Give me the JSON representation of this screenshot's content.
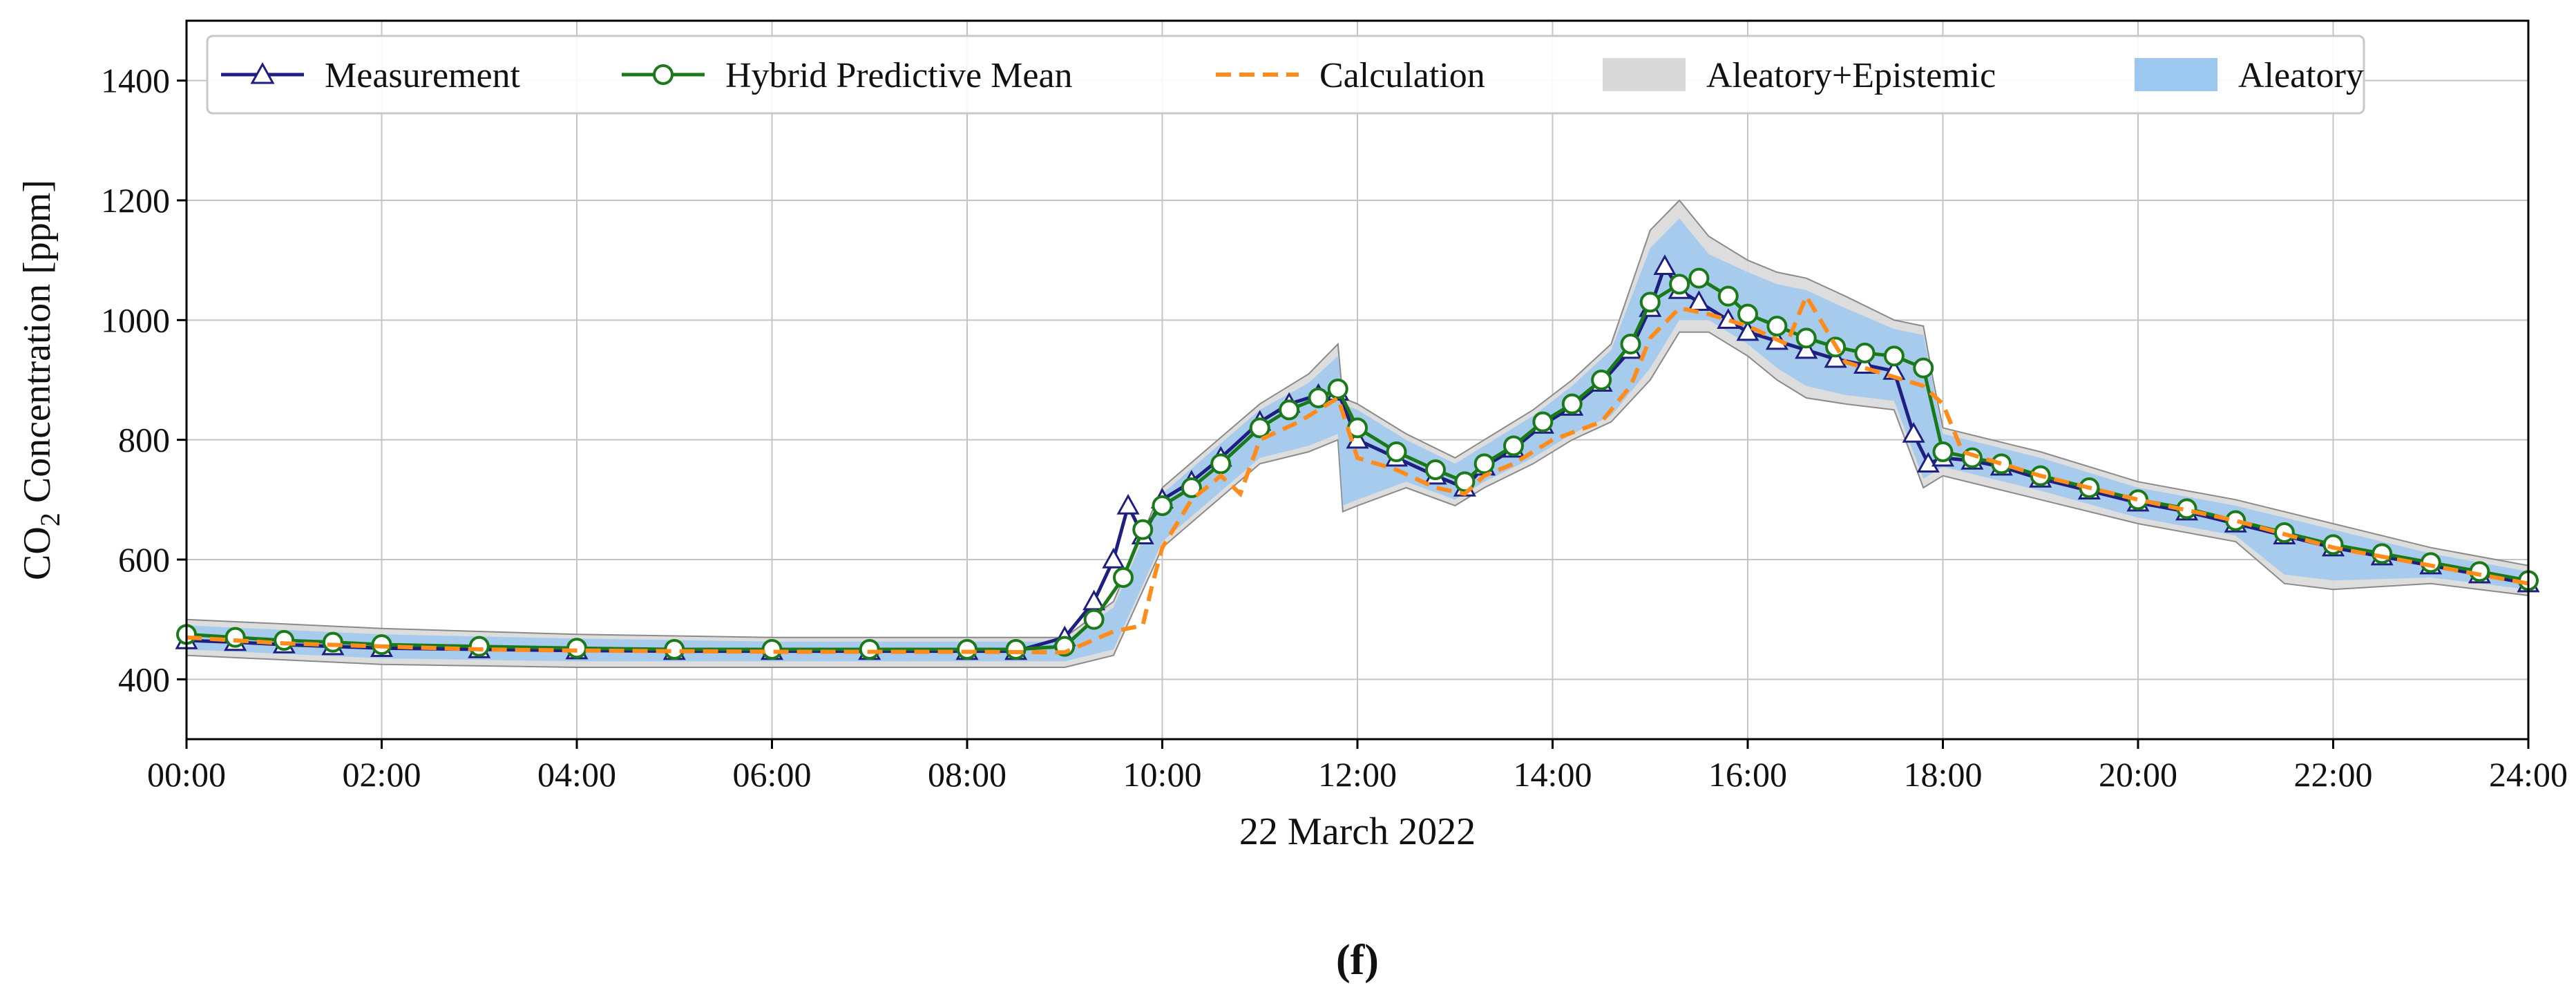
{
  "chart_data": {
    "type": "line",
    "panel_label": "(f)",
    "xlabel": "22 March 2022",
    "ylabel_parts": {
      "pre": "CO",
      "sub": "2",
      "post": " Concentration [ppm]"
    },
    "x_unit": "hours",
    "xlim": [
      0,
      24
    ],
    "ylim": [
      300,
      1500
    ],
    "x_ticks": [
      {
        "value": 0,
        "label": "00:00"
      },
      {
        "value": 2,
        "label": "02:00"
      },
      {
        "value": 4,
        "label": "04:00"
      },
      {
        "value": 6,
        "label": "06:00"
      },
      {
        "value": 8,
        "label": "08:00"
      },
      {
        "value": 10,
        "label": "10:00"
      },
      {
        "value": 12,
        "label": "12:00"
      },
      {
        "value": 14,
        "label": "14:00"
      },
      {
        "value": 16,
        "label": "16:00"
      },
      {
        "value": 18,
        "label": "18:00"
      },
      {
        "value": 20,
        "label": "20:00"
      },
      {
        "value": 22,
        "label": "22:00"
      },
      {
        "value": 24,
        "label": "24:00"
      }
    ],
    "y_ticks": [
      {
        "value": 400,
        "label": "400"
      },
      {
        "value": 600,
        "label": "600"
      },
      {
        "value": 800,
        "label": "800"
      },
      {
        "value": 1000,
        "label": "1000"
      },
      {
        "value": 1200,
        "label": "1200"
      },
      {
        "value": 1400,
        "label": "1400"
      }
    ],
    "grid": true,
    "legend_position": "top",
    "legend": [
      {
        "key": "measurement",
        "label": "Measurement",
        "kind": "line-triangle",
        "color": "#1f1f80"
      },
      {
        "key": "hybrid",
        "label": "Hybrid Predictive Mean",
        "kind": "line-circle",
        "color": "#1a7a1a"
      },
      {
        "key": "calculation",
        "label": "Calculation",
        "kind": "dashed",
        "color": "#ff8c1a"
      },
      {
        "key": "aleatory_epistemic",
        "label": "Aleatory+Epistemic",
        "kind": "band",
        "color": "#d9d9d9"
      },
      {
        "key": "aleatory",
        "label": "Aleatory",
        "kind": "band",
        "color": "#9cc8f0"
      }
    ],
    "series": [
      {
        "name": "Hybrid Predictive Mean",
        "x": [
          0,
          0.5,
          1,
          1.5,
          2,
          3,
          4,
          5,
          6,
          7,
          8,
          8.5,
          9,
          9.3,
          9.6,
          9.8,
          10,
          10.3,
          10.6,
          11,
          11.3,
          11.6,
          11.8,
          12,
          12.4,
          12.8,
          13.1,
          13.3,
          13.6,
          13.9,
          14.2,
          14.5,
          14.8,
          15.0,
          15.3,
          15.5,
          15.8,
          16.0,
          16.3,
          16.6,
          16.9,
          17.2,
          17.5,
          17.8,
          18.0,
          18.3,
          18.6,
          19,
          19.5,
          20,
          20.5,
          21,
          21.5,
          22,
          22.5,
          23,
          23.5,
          24
        ],
        "values": [
          475,
          470,
          465,
          462,
          458,
          455,
          452,
          450,
          450,
          450,
          450,
          450,
          455,
          500,
          570,
          650,
          690,
          720,
          760,
          820,
          850,
          870,
          885,
          820,
          780,
          750,
          730,
          760,
          790,
          830,
          860,
          900,
          960,
          1030,
          1060,
          1070,
          1040,
          1010,
          990,
          970,
          955,
          945,
          940,
          920,
          780,
          770,
          760,
          740,
          720,
          700,
          685,
          665,
          645,
          625,
          610,
          595,
          580,
          565
        ]
      },
      {
        "name": "Measurement",
        "x": [
          0,
          0.5,
          1,
          1.5,
          2,
          3,
          4,
          5,
          6,
          7,
          8,
          8.5,
          9,
          9.3,
          9.5,
          9.65,
          9.8,
          10,
          10.3,
          10.6,
          11,
          11.3,
          11.6,
          11.8,
          12,
          12.4,
          12.8,
          13.1,
          13.3,
          13.6,
          13.9,
          14.2,
          14.5,
          14.8,
          15.0,
          15.15,
          15.3,
          15.5,
          15.8,
          16.0,
          16.3,
          16.6,
          16.9,
          17.2,
          17.5,
          17.7,
          17.85,
          18.0,
          18.3,
          18.6,
          19,
          19.5,
          20,
          20.5,
          21,
          21.5,
          22,
          22.5,
          23,
          23.5,
          24
        ],
        "values": [
          465,
          462,
          458,
          455,
          452,
          450,
          448,
          447,
          447,
          447,
          447,
          447,
          470,
          530,
          600,
          690,
          640,
          700,
          730,
          770,
          830,
          860,
          875,
          880,
          800,
          770,
          740,
          720,
          755,
          785,
          825,
          855,
          895,
          950,
          1020,
          1090,
          1050,
          1030,
          1000,
          980,
          965,
          950,
          935,
          925,
          915,
          810,
          760,
          770,
          765,
          755,
          735,
          715,
          695,
          680,
          660,
          640,
          620,
          605,
          590,
          575,
          560
        ]
      },
      {
        "name": "Calculation",
        "x": [
          0,
          1,
          2,
          3,
          4,
          5,
          6,
          7,
          8,
          9,
          9.5,
          9.8,
          9.9,
          10,
          10.3,
          10.6,
          10.8,
          11,
          11.4,
          11.8,
          12,
          12.4,
          12.8,
          13.1,
          13.3,
          13.6,
          14,
          14.5,
          14.8,
          15.0,
          15.3,
          15.6,
          16.0,
          16.4,
          16.6,
          17.0,
          17.4,
          17.8,
          18.0,
          18.2,
          18.6,
          19,
          20,
          21,
          22,
          23,
          24
        ],
        "values": [
          470,
          460,
          455,
          450,
          448,
          447,
          446,
          446,
          446,
          445,
          480,
          490,
          560,
          620,
          700,
          740,
          710,
          800,
          830,
          870,
          770,
          750,
          720,
          710,
          740,
          760,
          800,
          830,
          890,
          970,
          1020,
          1010,
          990,
          960,
          1040,
          930,
          910,
          890,
          860,
          780,
          760,
          740,
          700,
          665,
          620,
          590,
          560
        ]
      }
    ],
    "bands": [
      {
        "name": "Aleatory+Epistemic",
        "x": [
          0,
          2,
          4,
          6,
          8,
          9,
          9.5,
          10,
          10.5,
          11,
          11.5,
          11.8,
          11.85,
          12,
          12.5,
          13,
          13.3,
          13.8,
          14.2,
          14.6,
          15.0,
          15.3,
          15.6,
          16.0,
          16.3,
          16.6,
          17.0,
          17.5,
          17.8,
          17.9,
          18.0,
          18.5,
          19,
          20,
          21,
          21.5,
          22,
          23,
          24
        ],
        "upper": [
          500,
          485,
          475,
          470,
          470,
          470,
          530,
          720,
          790,
          860,
          910,
          960,
          870,
          860,
          810,
          770,
          800,
          850,
          900,
          960,
          1150,
          1200,
          1140,
          1100,
          1080,
          1070,
          1040,
          1000,
          990,
          900,
          820,
          800,
          780,
          730,
          700,
          680,
          660,
          620,
          590
        ],
        "lower": [
          440,
          425,
          420,
          420,
          420,
          420,
          440,
          620,
          690,
          760,
          780,
          800,
          680,
          690,
          720,
          690,
          720,
          760,
          800,
          830,
          900,
          980,
          980,
          940,
          900,
          870,
          860,
          850,
          720,
          730,
          740,
          720,
          700,
          660,
          630,
          560,
          550,
          560,
          540
        ]
      },
      {
        "name": "Aleatory",
        "x": [
          0,
          2,
          4,
          6,
          8,
          9,
          9.5,
          10,
          10.5,
          11,
          11.5,
          11.8,
          11.85,
          12,
          12.5,
          13,
          13.3,
          13.8,
          14.2,
          14.6,
          15.0,
          15.3,
          15.6,
          16.0,
          16.3,
          16.6,
          17.0,
          17.5,
          17.8,
          17.9,
          18.0,
          18.5,
          19,
          20,
          21,
          21.5,
          22,
          23,
          24
        ],
        "upper": [
          490,
          475,
          468,
          463,
          463,
          463,
          520,
          710,
          780,
          850,
          895,
          940,
          860,
          850,
          800,
          760,
          790,
          840,
          890,
          950,
          1120,
          1170,
          1110,
          1080,
          1060,
          1050,
          1020,
          985,
          975,
          890,
          810,
          790,
          770,
          720,
          690,
          670,
          650,
          610,
          580
        ],
        "lower": [
          450,
          435,
          430,
          430,
          430,
          430,
          450,
          630,
          700,
          770,
          790,
          810,
          690,
          700,
          730,
          700,
          730,
          770,
          810,
          840,
          920,
          1000,
          1000,
          960,
          920,
          890,
          875,
          865,
          735,
          745,
          755,
          735,
          715,
          670,
          640,
          575,
          565,
          570,
          550
        ]
      }
    ]
  }
}
